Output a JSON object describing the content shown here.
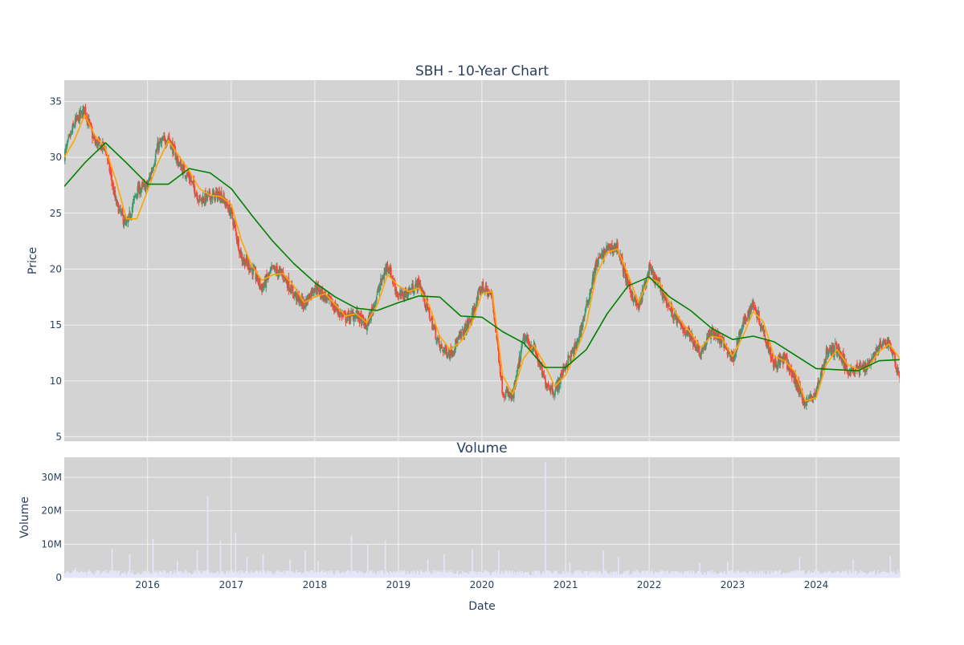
{
  "chart_data": [
    {
      "type": "candlestick",
      "title": "SBH - 10-Year Chart",
      "xlabel": "",
      "ylabel": "Price",
      "ylim": [
        4.6,
        36.9
      ],
      "xlim": [
        "2015-01-02",
        "2024-12-31"
      ],
      "y_ticks": [
        5,
        10,
        15,
        20,
        25,
        30,
        35
      ],
      "x_ticks": [
        "2016-01-01",
        "2017-01-01",
        "2018-01-01",
        "2019-01-01",
        "2020-01-01",
        "2021-01-01",
        "2022-01-01",
        "2023-01-01",
        "2024-01-01"
      ],
      "grid": true,
      "legend": "none",
      "colors": {
        "up": "#3D9970",
        "down": "#FF4136",
        "ma_short": "#FFA500",
        "ma_long": "#008000",
        "plot_bg": "#D3D3D3",
        "grid": "#f2f2f2"
      },
      "series": [
        {
          "kind": "close-path",
          "dates": [
            "2015-01-02",
            "2015-02-15",
            "2015-04-01",
            "2015-05-15",
            "2015-07-01",
            "2015-08-15",
            "2015-10-01",
            "2015-11-15",
            "2016-01-01",
            "2016-02-15",
            "2016-04-01",
            "2016-05-15",
            "2016-07-01",
            "2016-08-15",
            "2016-10-01",
            "2016-11-15",
            "2017-01-01",
            "2017-02-15",
            "2017-04-01",
            "2017-05-15",
            "2017-07-01",
            "2017-08-15",
            "2017-10-01",
            "2017-11-15",
            "2018-01-01",
            "2018-02-15",
            "2018-04-01",
            "2018-05-15",
            "2018-07-01",
            "2018-08-15",
            "2018-10-01",
            "2018-11-15",
            "2019-01-01",
            "2019-02-15",
            "2019-04-01",
            "2019-05-15",
            "2019-07-01",
            "2019-08-15",
            "2019-10-01",
            "2019-11-15",
            "2020-01-01",
            "2020-02-15",
            "2020-04-01",
            "2020-05-15",
            "2020-07-01",
            "2020-08-15",
            "2020-10-01",
            "2020-11-15",
            "2021-01-01",
            "2021-02-15",
            "2021-04-01",
            "2021-05-15",
            "2021-07-01",
            "2021-08-15",
            "2021-10-01",
            "2021-11-15",
            "2022-01-01",
            "2022-02-15",
            "2022-04-01",
            "2022-05-15",
            "2022-07-01",
            "2022-08-15",
            "2022-10-01",
            "2022-11-15",
            "2023-01-01",
            "2023-02-15",
            "2023-04-01",
            "2023-05-15",
            "2023-07-01",
            "2023-08-15",
            "2023-10-01",
            "2023-11-15",
            "2024-01-01",
            "2024-02-15",
            "2024-04-01",
            "2024-05-15",
            "2024-07-01",
            "2024-08-15",
            "2024-10-01",
            "2024-11-15",
            "2024-12-31"
          ],
          "close": [
            30.2,
            33.0,
            34.3,
            31.3,
            30.8,
            26.0,
            23.8,
            27.0,
            27.5,
            31.0,
            31.8,
            29.5,
            28.2,
            26.2,
            26.5,
            26.7,
            25.0,
            21.0,
            20.0,
            18.3,
            20.0,
            19.5,
            17.8,
            16.8,
            18.5,
            17.5,
            16.5,
            15.6,
            16.0,
            14.8,
            17.8,
            20.5,
            17.5,
            18.0,
            18.8,
            16.0,
            13.0,
            12.5,
            14.0,
            15.5,
            18.5,
            17.5,
            9.0,
            8.5,
            13.8,
            13.0,
            10.0,
            9.0,
            11.5,
            13.0,
            16.5,
            20.5,
            21.8,
            22.0,
            18.5,
            16.5,
            20.0,
            18.5,
            16.5,
            15.0,
            14.0,
            12.5,
            14.5,
            13.5,
            12.0,
            15.0,
            17.0,
            14.5,
            11.5,
            12.0,
            10.0,
            8.0,
            9.0,
            12.5,
            13.0,
            11.0,
            11.0,
            11.5,
            13.0,
            13.5,
            10.3
          ]
        },
        {
          "kind": "moving-average-short",
          "dates": [
            "2015-01-02",
            "2015-02-15",
            "2015-04-01",
            "2015-05-15",
            "2015-07-01",
            "2015-08-15",
            "2015-10-01",
            "2015-11-15",
            "2016-01-01",
            "2016-02-15",
            "2016-04-01",
            "2016-05-15",
            "2016-07-01",
            "2016-08-15",
            "2016-10-01",
            "2016-11-15",
            "2017-01-01",
            "2017-02-15",
            "2017-04-01",
            "2017-05-15",
            "2017-07-01",
            "2017-08-15",
            "2017-10-01",
            "2017-11-15",
            "2018-01-01",
            "2018-02-15",
            "2018-04-01",
            "2018-05-15",
            "2018-07-01",
            "2018-08-15",
            "2018-10-01",
            "2018-11-15",
            "2019-01-01",
            "2019-02-15",
            "2019-04-01",
            "2019-05-15",
            "2019-07-01",
            "2019-08-15",
            "2019-10-01",
            "2019-11-15",
            "2020-01-01",
            "2020-02-15",
            "2020-04-01",
            "2020-05-15",
            "2020-07-01",
            "2020-08-15",
            "2020-10-01",
            "2020-11-15",
            "2021-01-01",
            "2021-02-15",
            "2021-04-01",
            "2021-05-15",
            "2021-07-01",
            "2021-08-15",
            "2021-10-01",
            "2021-11-15",
            "2022-01-01",
            "2022-02-15",
            "2022-04-01",
            "2022-05-15",
            "2022-07-01",
            "2022-08-15",
            "2022-10-01",
            "2022-11-15",
            "2023-01-01",
            "2023-02-15",
            "2023-04-01",
            "2023-05-15",
            "2023-07-01",
            "2023-08-15",
            "2023-10-01",
            "2023-11-15",
            "2024-01-01",
            "2024-02-15",
            "2024-04-01",
            "2024-05-15",
            "2024-07-01",
            "2024-08-15",
            "2024-10-01",
            "2024-11-15",
            "2024-12-31"
          ],
          "values": [
            30.0,
            31.5,
            33.8,
            32.0,
            30.8,
            28.0,
            24.5,
            24.5,
            27.0,
            29.5,
            31.5,
            30.2,
            28.8,
            27.2,
            26.6,
            26.5,
            25.8,
            22.5,
            20.3,
            19.0,
            19.5,
            19.6,
            18.5,
            17.0,
            17.5,
            17.8,
            16.8,
            15.8,
            16.0,
            15.2,
            16.8,
            19.5,
            18.5,
            18.0,
            18.3,
            16.8,
            14.0,
            12.8,
            13.5,
            15.0,
            17.8,
            18.0,
            10.5,
            8.8,
            12.0,
            13.2,
            11.5,
            9.5,
            10.5,
            12.5,
            15.0,
            19.5,
            21.5,
            21.8,
            19.5,
            17.0,
            19.2,
            18.8,
            17.0,
            15.5,
            14.3,
            13.0,
            14.0,
            13.8,
            12.2,
            14.0,
            16.2,
            15.3,
            12.2,
            11.8,
            10.8,
            8.2,
            8.5,
            11.5,
            12.8,
            11.5,
            11.0,
            11.2,
            12.6,
            13.3,
            12.0
          ]
        },
        {
          "kind": "moving-average-long",
          "dates": [
            "2015-01-02",
            "2015-04-01",
            "2015-07-01",
            "2015-10-01",
            "2016-01-01",
            "2016-04-01",
            "2016-07-01",
            "2016-10-01",
            "2017-01-01",
            "2017-04-01",
            "2017-07-01",
            "2017-10-01",
            "2018-01-01",
            "2018-04-01",
            "2018-07-01",
            "2018-10-01",
            "2019-01-01",
            "2019-04-01",
            "2019-07-01",
            "2019-10-01",
            "2020-01-01",
            "2020-04-01",
            "2020-07-01",
            "2020-10-01",
            "2021-01-01",
            "2021-04-01",
            "2021-07-01",
            "2021-10-01",
            "2022-01-01",
            "2022-04-01",
            "2022-07-01",
            "2022-10-01",
            "2023-01-01",
            "2023-04-01",
            "2023-07-01",
            "2023-10-01",
            "2024-01-01",
            "2024-04-01",
            "2024-07-01",
            "2024-10-01",
            "2024-12-31"
          ],
          "values": [
            27.4,
            29.5,
            31.3,
            29.5,
            27.6,
            27.6,
            29.0,
            28.6,
            27.2,
            24.8,
            22.5,
            20.5,
            18.8,
            17.5,
            16.5,
            16.3,
            17.0,
            17.6,
            17.5,
            15.8,
            15.7,
            14.4,
            13.4,
            11.2,
            11.2,
            12.8,
            16.0,
            18.5,
            19.3,
            17.5,
            16.3,
            14.7,
            13.7,
            14.0,
            13.5,
            12.3,
            11.1,
            11.0,
            10.9,
            11.8,
            11.9
          ]
        }
      ]
    },
    {
      "type": "bar",
      "title": "Volume",
      "xlabel": "Date",
      "ylabel": "Volume",
      "ylim": [
        0,
        36000000
      ],
      "y_ticks": [
        0,
        10000000,
        20000000,
        30000000
      ],
      "y_tick_labels": [
        "0",
        "10M",
        "20M",
        "30M"
      ],
      "x_ticks": [
        "2016-01-01",
        "2017-01-01",
        "2018-01-01",
        "2019-01-01",
        "2020-01-01",
        "2021-01-01",
        "2022-01-01",
        "2023-01-01",
        "2024-01-01"
      ],
      "x_tick_labels": [
        "2016",
        "2017",
        "2018",
        "2019",
        "2020",
        "2021",
        "2022",
        "2023",
        "2024"
      ],
      "grid": true,
      "legend": "none",
      "colors": {
        "bar": "#E6E6FA",
        "plot_bg": "#D3D3D3"
      },
      "baseline_volume": 1500000,
      "spikes": [
        {
          "date": "2015-02-20",
          "value": 3000000
        },
        {
          "date": "2015-07-30",
          "value": 8500000
        },
        {
          "date": "2015-10-15",
          "value": 7000000
        },
        {
          "date": "2016-01-25",
          "value": 11500000
        },
        {
          "date": "2016-05-10",
          "value": 5000000
        },
        {
          "date": "2016-08-05",
          "value": 8000000
        },
        {
          "date": "2016-09-20",
          "value": 24500000
        },
        {
          "date": "2016-11-15",
          "value": 11000000
        },
        {
          "date": "2017-01-20",
          "value": 13500000
        },
        {
          "date": "2017-03-10",
          "value": 6000000
        },
        {
          "date": "2017-05-20",
          "value": 7000000
        },
        {
          "date": "2017-09-15",
          "value": 5500000
        },
        {
          "date": "2017-11-20",
          "value": 8000000
        },
        {
          "date": "2018-01-15",
          "value": 5000000
        },
        {
          "date": "2018-06-10",
          "value": 12500000
        },
        {
          "date": "2018-08-20",
          "value": 10000000
        },
        {
          "date": "2018-11-05",
          "value": 11000000
        },
        {
          "date": "2019-05-10",
          "value": 5500000
        },
        {
          "date": "2019-07-20",
          "value": 7000000
        },
        {
          "date": "2019-11-20",
          "value": 8500000
        },
        {
          "date": "2020-03-15",
          "value": 8000000
        },
        {
          "date": "2020-10-05",
          "value": 34500000
        },
        {
          "date": "2021-01-20",
          "value": 4500000
        },
        {
          "date": "2021-06-15",
          "value": 8000000
        },
        {
          "date": "2021-08-20",
          "value": 6000000
        },
        {
          "date": "2022-08-10",
          "value": 4500000
        },
        {
          "date": "2022-12-10",
          "value": 5000000
        },
        {
          "date": "2023-10-20",
          "value": 6000000
        },
        {
          "date": "2024-06-10",
          "value": 5500000
        },
        {
          "date": "2024-11-20",
          "value": 6500000
        }
      ]
    }
  ]
}
